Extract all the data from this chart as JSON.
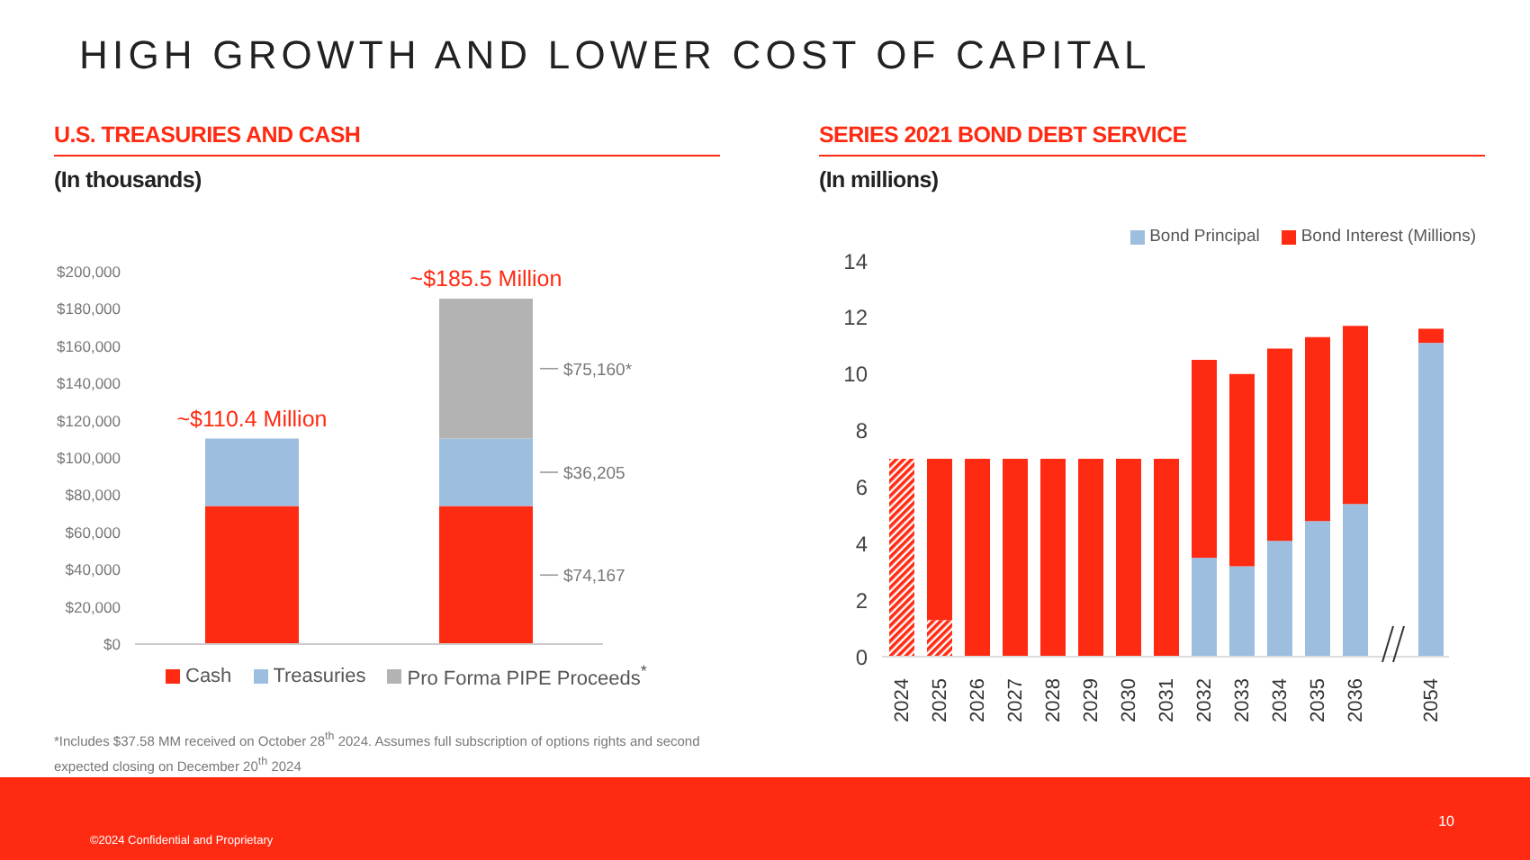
{
  "chart_data": [
    {
      "type": "bar",
      "title": "U.S. TREASURIES AND CASH",
      "subtitle": "(In thousands)",
      "stacked": true,
      "categories": [
        null,
        null
      ],
      "series": [
        {
          "name": "Cash",
          "color": "#ff2a12",
          "values": [
            74167,
            74167
          ],
          "value_labels": [
            null,
            "$74,167"
          ]
        },
        {
          "name": "Treasuries",
          "color": "#9dbedf",
          "values": [
            36205,
            36205
          ],
          "value_labels": [
            null,
            "$36,205"
          ]
        },
        {
          "name": "Pro Forma PIPE Proceeds$^{*}$",
          "color": "#b3b3b3",
          "values": [
            null,
            75160
          ],
          "value_labels": [
            null,
            "$75,160*"
          ]
        }
      ],
      "ylim": [
        0,
        200000
      ],
      "yticks": [
        {
          "value": 0,
          "label": "$0"
        },
        {
          "value": 20000,
          "label": "$20,000"
        },
        {
          "value": 40000,
          "label": "$40,000"
        },
        {
          "value": 60000,
          "label": "$60,000"
        },
        {
          "value": 80000,
          "label": "$80,000"
        },
        {
          "value": 100000,
          "label": "$100,000"
        },
        {
          "value": 120000,
          "label": "$120,000"
        },
        {
          "value": 140000,
          "label": "$140,000"
        },
        {
          "value": 160000,
          "label": "$160,000"
        },
        {
          "value": 180000,
          "label": "$180,000"
        },
        {
          "value": 200000,
          "label": "$200,000"
        }
      ],
      "grid": false,
      "legend": "bottom",
      "annotations": [
        "HIGH GROWTH AND LOWER COST OF CAPITAL",
        "~$110.4 Million",
        "~$185.5 Million",
        "*Includes $37.58 MM received on October 28$^{th}$ 2024. Assumes full subscription of options rights and second expected closing on December 20$^{th}$ 2024"
      ]
    },
    {
      "type": "bar",
      "title": "SERIES 2021 BOND DEBT SERVICE",
      "subtitle": "(In millions)",
      "stacked": true,
      "categories": [
        "2024",
        "2025",
        "2026",
        "2027",
        "2028",
        "2029",
        "2030",
        "2031",
        "2032",
        "2033",
        "2034",
        "2035",
        "2036",
        null,
        "2054"
      ],
      "series": [
        {
          "color": "#ff2a12",
          "values": [
            7,
            1.3,
            null,
            null,
            null,
            null,
            null,
            null,
            null,
            null,
            null,
            null,
            null,
            null,
            null
          ]
        },
        {
          "name": "Bond Principal",
          "color": "#9dbedf",
          "values": [
            null,
            null,
            null,
            null,
            null,
            null,
            null,
            null,
            3.5,
            3.2,
            4.1,
            4.8,
            5.4,
            null,
            11.1
          ]
        },
        {
          "name": "Bond Interest (Millions)",
          "color": "#ff2a12",
          "values": [
            null,
            5.7,
            7,
            7,
            7,
            7,
            7,
            7,
            7.0,
            6.8,
            6.8,
            6.5,
            6.3,
            null,
            0.5
          ]
        }
      ],
      "ylim": [
        0,
        14
      ],
      "yticks": [
        0,
        2,
        4,
        6,
        8,
        10,
        12,
        14
      ],
      "grid": false,
      "legend": "top right",
      "annotations": [
        "10",
        "©2024 Confidential and Proprietary"
      ]
    }
  ]
}
